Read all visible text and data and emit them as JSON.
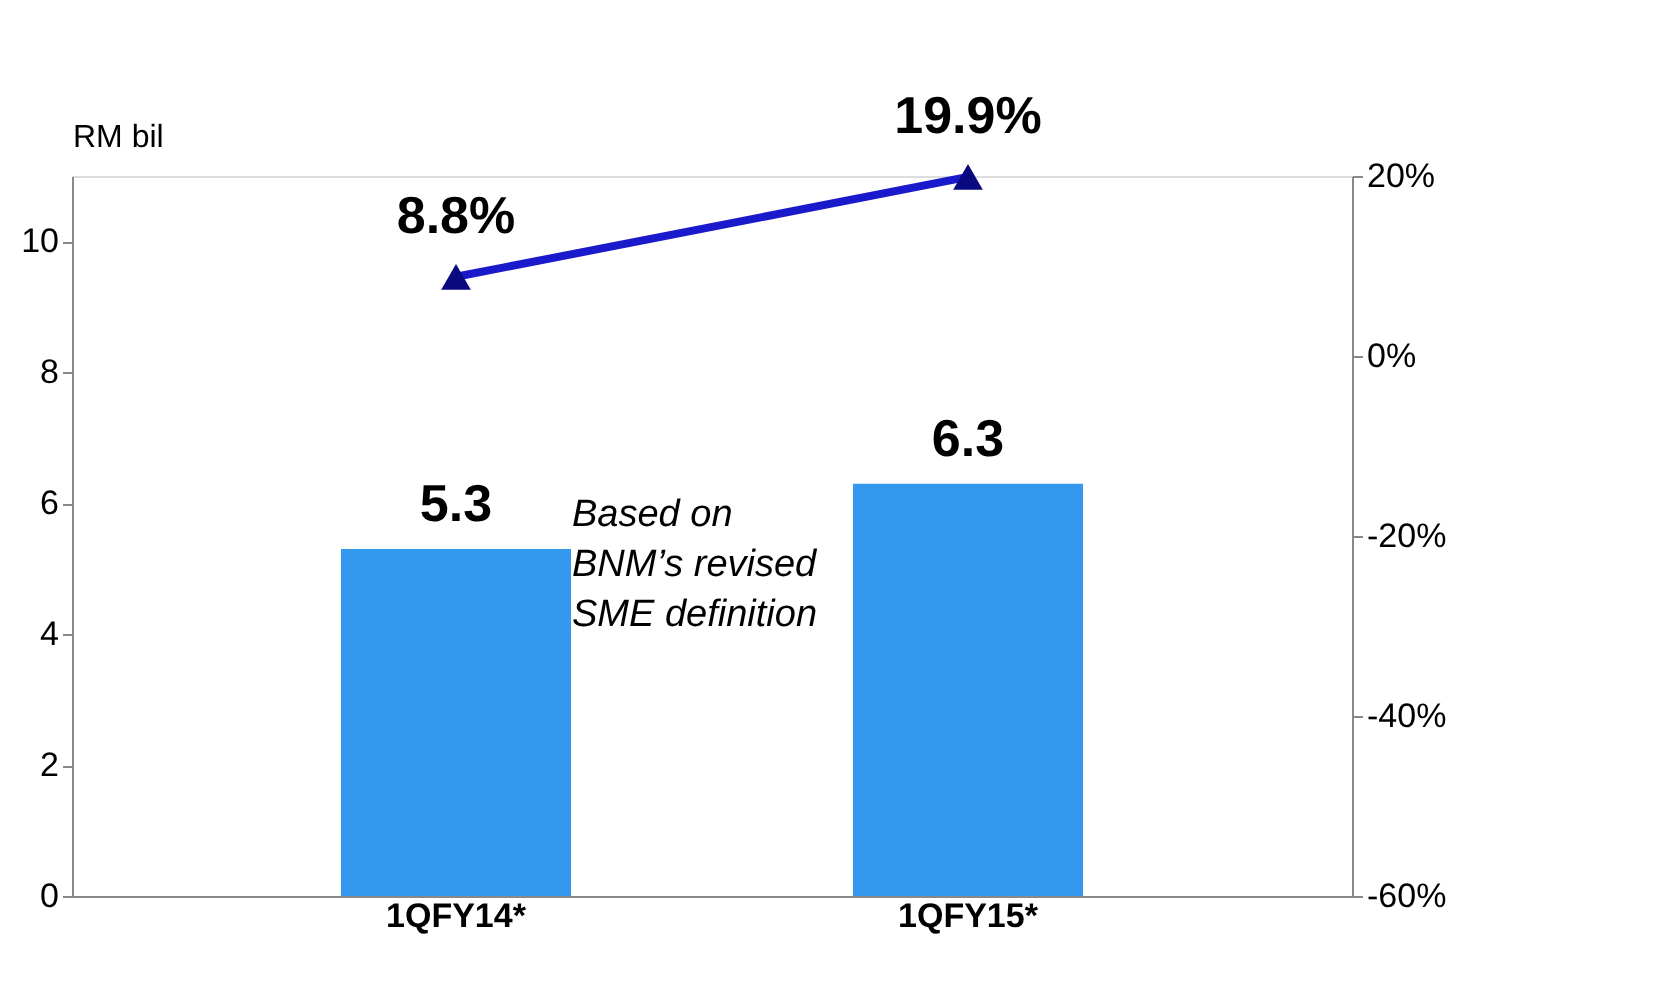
{
  "chart_data": {
    "type": "bar",
    "ylabel": "RM bil",
    "categories": [
      "1QFY14*",
      "1QFY15*"
    ],
    "series": [
      {
        "color": "#3399ee",
        "values": [
          5.3,
          6.3
        ],
        "value_labels": [
          "5.3",
          "6.3"
        ]
      },
      {
        "type": "line",
        "axis": "y2",
        "color": "#1a1acc",
        "values": [
          8.8,
          19.9
        ],
        "value_labels": [
          "8.8%",
          "19.9%"
        ],
        "marker": "triangle"
      }
    ],
    "ylim": [
      0,
      11
    ],
    "yticks": [
      0,
      2,
      4,
      6,
      8,
      10
    ],
    "y2lim": [
      -60,
      20
    ],
    "y2ticks": [
      {
        "value": -60,
        "label": "-60%"
      },
      {
        "value": -40,
        "label": "-40%"
      },
      {
        "value": -20,
        "label": "-20%"
      },
      {
        "value": 0,
        "label": "0%"
      },
      {
        "value": 20,
        "label": "20%"
      }
    ],
    "annotations": [
      "Based on BNM’s revised SME definition"
    ],
    "grid": false
  }
}
